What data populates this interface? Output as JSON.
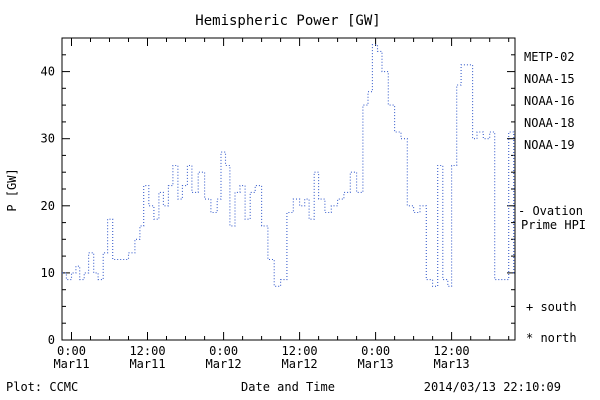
{
  "chart_data": {
    "type": "line",
    "title": "Hemispheric Power [GW]",
    "xlabel": "Date and Time",
    "ylabel": "P [GW]",
    "ylim": [
      0,
      45
    ],
    "xlim_hours": [
      -1.5,
      70
    ],
    "y_ticks": [
      0,
      10,
      20,
      30,
      40
    ],
    "y_minor_step": 2.5,
    "x_minor_step": 3,
    "x_ticks": [
      {
        "hour": 0,
        "time": "0:00",
        "date": "Mar11"
      },
      {
        "hour": 12,
        "time": "12:00",
        "date": "Mar11"
      },
      {
        "hour": 24,
        "time": "0:00",
        "date": "Mar12"
      },
      {
        "hour": 36,
        "time": "12:00",
        "date": "Mar12"
      },
      {
        "hour": 48,
        "time": "0:00",
        "date": "Mar13"
      },
      {
        "hour": 60,
        "time": "12:00",
        "date": "Mar13"
      }
    ],
    "series": [
      {
        "name": "Ovation Prime HPI",
        "color": "#3a5fcd",
        "style": "dotted-step",
        "x_hours": [
          -1.5,
          -0.8,
          0,
          0.7,
          1.3,
          2,
          2.7,
          3.5,
          4.2,
          5,
          5.7,
          6.5,
          8,
          9,
          10,
          10.8,
          11.4,
          12.2,
          13,
          13.8,
          14.5,
          15.3,
          16,
          16.8,
          17.5,
          18.3,
          19,
          20,
          21,
          22,
          23,
          23.6,
          24.3,
          25,
          25.8,
          26.6,
          27.4,
          28.2,
          29,
          30,
          31,
          32,
          33,
          34,
          35,
          36,
          36.8,
          37.5,
          38.3,
          39,
          40,
          41,
          42,
          43,
          44,
          45,
          46,
          46.8,
          47.5,
          48.3,
          49,
          50,
          51,
          52,
          53,
          54,
          55,
          56,
          57,
          57.8,
          58.6,
          59.4,
          60,
          60.8,
          61.5,
          62.5,
          63.3,
          64,
          65,
          66,
          66.8,
          68.5,
          69,
          69.8
        ],
        "values": [
          10,
          9,
          10,
          11,
          9,
          10,
          13,
          10,
          9,
          13,
          18,
          12,
          12,
          13,
          15,
          17,
          23,
          20,
          18,
          22,
          20,
          23,
          26,
          21,
          23,
          26,
          22,
          25,
          21,
          19,
          21,
          28,
          26,
          17,
          22,
          23,
          18,
          22,
          23,
          17,
          12,
          8,
          9,
          19,
          21,
          20,
          21,
          18,
          25,
          21,
          19,
          20,
          21,
          22,
          25,
          22,
          35,
          37,
          44,
          43,
          40,
          35,
          31,
          30,
          20,
          19,
          20,
          9,
          8,
          26,
          9,
          8,
          26,
          38,
          41,
          41,
          30,
          31,
          30,
          31,
          9,
          9,
          31,
          10
        ]
      }
    ],
    "legend": [
      {
        "label": "METP-02",
        "color": "#000000"
      },
      {
        "label": "NOAA-15",
        "color": "#2244cc"
      },
      {
        "label": "NOAA-16",
        "color": "#00b2d4"
      },
      {
        "label": "NOAA-18",
        "color": "#7fd87f"
      },
      {
        "label": "NOAA-19",
        "color": "#ff9a3c"
      }
    ],
    "annotations": {
      "ovation_line1": "- Ovation",
      "ovation_line2": "Prime HPI",
      "ovation_color": "#2244cc",
      "south": "+ south",
      "north": "* north"
    },
    "footer": {
      "left": "Plot: CCMC",
      "right": "2014/03/13 22:10:09"
    }
  }
}
